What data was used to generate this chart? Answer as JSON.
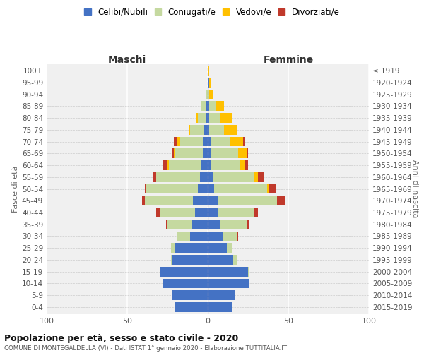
{
  "age_groups": [
    "0-4",
    "5-9",
    "10-14",
    "15-19",
    "20-24",
    "25-29",
    "30-34",
    "35-39",
    "40-44",
    "45-49",
    "50-54",
    "55-59",
    "60-64",
    "65-69",
    "70-74",
    "75-79",
    "80-84",
    "85-89",
    "90-94",
    "95-99",
    "100+"
  ],
  "birth_years": [
    "2015-2019",
    "2010-2014",
    "2005-2009",
    "2000-2004",
    "1995-1999",
    "1990-1994",
    "1985-1989",
    "1980-1984",
    "1975-1979",
    "1970-1974",
    "1965-1969",
    "1960-1964",
    "1955-1959",
    "1950-1954",
    "1945-1949",
    "1940-1944",
    "1935-1939",
    "1930-1934",
    "1925-1929",
    "1920-1924",
    "≤ 1919"
  ],
  "males": {
    "celibe": [
      20,
      22,
      28,
      30,
      22,
      20,
      11,
      10,
      8,
      9,
      6,
      5,
      4,
      3,
      3,
      2,
      1,
      1,
      0,
      0,
      0
    ],
    "coniugato": [
      0,
      0,
      0,
      0,
      1,
      3,
      8,
      15,
      22,
      30,
      32,
      27,
      20,
      17,
      14,
      9,
      5,
      3,
      1,
      0,
      0
    ],
    "vedovo": [
      0,
      0,
      0,
      0,
      0,
      0,
      0,
      0,
      0,
      0,
      0,
      0,
      1,
      1,
      2,
      1,
      1,
      0,
      0,
      0,
      0
    ],
    "divorziato": [
      0,
      0,
      0,
      0,
      0,
      0,
      0,
      1,
      2,
      2,
      1,
      2,
      3,
      1,
      2,
      0,
      0,
      0,
      0,
      0,
      0
    ]
  },
  "females": {
    "nubile": [
      15,
      17,
      26,
      25,
      16,
      12,
      9,
      8,
      6,
      6,
      4,
      3,
      2,
      2,
      2,
      1,
      1,
      1,
      0,
      1,
      0
    ],
    "coniugata": [
      0,
      0,
      0,
      1,
      2,
      3,
      9,
      16,
      23,
      37,
      33,
      26,
      18,
      17,
      12,
      9,
      7,
      4,
      1,
      0,
      0
    ],
    "vedova": [
      0,
      0,
      0,
      0,
      0,
      0,
      0,
      0,
      0,
      0,
      1,
      2,
      3,
      5,
      8,
      8,
      7,
      5,
      2,
      1,
      1
    ],
    "divorziata": [
      0,
      0,
      0,
      0,
      0,
      0,
      1,
      2,
      2,
      5,
      4,
      4,
      2,
      1,
      1,
      0,
      0,
      0,
      0,
      0,
      0
    ]
  },
  "colors": {
    "celibe": "#4472c4",
    "coniugato": "#c5d9a0",
    "vedovo": "#ffc000",
    "divorziato": "#c0392b"
  },
  "xlim": 100,
  "title": "Popolazione per età, sesso e stato civile - 2020",
  "subtitle": "COMUNE DI MONTEGALDELLA (VI) - Dati ISTAT 1° gennaio 2020 - Elaborazione TUTTITALIA.IT",
  "label_maschi": "Maschi",
  "label_femmine": "Femmine",
  "ylabel_left": "Fasce di età",
  "ylabel_right": "Anni di nascita",
  "legend_labels": [
    "Celibi/Nubili",
    "Coniugati/e",
    "Vedovi/e",
    "Divorziati/e"
  ],
  "bg_color": "#ffffff",
  "plot_bg_color": "#f0f0f0"
}
